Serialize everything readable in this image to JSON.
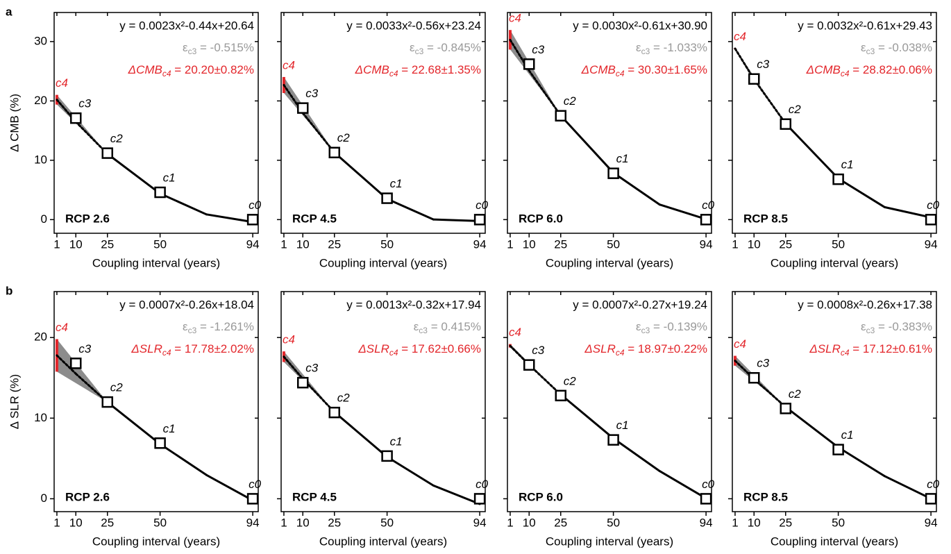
{
  "chart_data": [
    {
      "type": "line",
      "panel_label": "a",
      "title": "RCP 2.6",
      "y_label": "Δ CMB (%)",
      "x_label": "Coupling interval (years)",
      "equation": "y = 0.0023x²-0.44x+20.64",
      "epsilon_symbol": "ε",
      "epsilon_sub": "c3",
      "epsilon_text": " = -0.515%",
      "delta_symbol": "ΔCMB",
      "delta_sub": "c4",
      "delta_text": " = 20.20±0.82%",
      "xlim": [
        -0.3,
        96.6
      ],
      "xticks": [
        1,
        10,
        25,
        50,
        94
      ],
      "ylim": [
        -2.3,
        34.9
      ],
      "yticks": [
        0,
        10,
        20,
        30
      ],
      "fit": {
        "x": [
          1,
          10,
          25,
          50,
          72,
          94
        ],
        "values": [
          20.2,
          16.47,
          11.08,
          4.39,
          0.88,
          -0.4
        ],
        "color": "#000000"
      },
      "band": {
        "x": [
          1,
          25
        ],
        "lower": [
          19.38,
          11.08
        ],
        "upper": [
          21.02,
          11.08
        ],
        "color": "#8c8c8c",
        "edge_color": "#e3262b",
        "label": "c4"
      },
      "points": {
        "x": [
          10,
          25,
          50,
          94
        ],
        "values": [
          17.1,
          11.2,
          4.6,
          0
        ],
        "labels": [
          "c3",
          "c2",
          "c1",
          "c0"
        ]
      }
    },
    {
      "type": "line",
      "title": "RCP 4.5",
      "x_label": "Coupling interval (years)",
      "equation": "y = 0.0033x²-0.56x+23.24",
      "epsilon_symbol": "ε",
      "epsilon_sub": "c3",
      "epsilon_text": " = -0.845%",
      "delta_symbol": "ΔCMB",
      "delta_sub": "c4",
      "delta_text": " = 22.68±1.35%",
      "xlim": [
        -0.3,
        96.6
      ],
      "xticks": [
        1,
        10,
        25,
        50,
        94
      ],
      "ylim": [
        -2.3,
        34.9
      ],
      "yticks": [
        0,
        10,
        20,
        30
      ],
      "fit": {
        "x": [
          1,
          10,
          25,
          50,
          72,
          94
        ],
        "values": [
          22.68,
          17.97,
          11.3,
          3.49,
          0.03,
          -0.24
        ],
        "color": "#000000"
      },
      "band": {
        "x": [
          1,
          25
        ],
        "lower": [
          21.33,
          11.3
        ],
        "upper": [
          24.03,
          11.3
        ],
        "color": "#8c8c8c",
        "edge_color": "#e3262b",
        "label": "c4"
      },
      "points": {
        "x": [
          10,
          25,
          50,
          94
        ],
        "values": [
          18.8,
          11.3,
          3.6,
          0
        ],
        "labels": [
          "c3",
          "c2",
          "c1",
          "c0"
        ]
      }
    },
    {
      "type": "line",
      "title": "RCP 6.0",
      "x_label": "Coupling interval (years)",
      "equation": "y = 0.0030x²-0.61x+30.90",
      "epsilon_symbol": "ε",
      "epsilon_sub": "c3",
      "epsilon_text": " = -1.033%",
      "delta_symbol": "ΔCMB",
      "delta_sub": "c4",
      "delta_text": " = 30.30±1.65%",
      "xlim": [
        -0.3,
        96.6
      ],
      "xticks": [
        1,
        10,
        25,
        50,
        94
      ],
      "ylim": [
        -2.3,
        34.9
      ],
      "yticks": [
        0,
        10,
        20,
        30
      ],
      "fit": {
        "x": [
          1,
          10,
          25,
          50,
          72,
          94
        ],
        "values": [
          30.29,
          25.1,
          17.53,
          7.9,
          2.53,
          0.07
        ],
        "color": "#000000"
      },
      "band": {
        "x": [
          1,
          25
        ],
        "lower": [
          28.65,
          17.53
        ],
        "upper": [
          31.95,
          17.53
        ],
        "color": "#8c8c8c",
        "edge_color": "#e3262b",
        "label": "c4"
      },
      "points": {
        "x": [
          10,
          25,
          50,
          94
        ],
        "values": [
          26.2,
          17.5,
          7.8,
          0
        ],
        "labels": [
          "c3",
          "c2",
          "c1",
          "c0"
        ]
      }
    },
    {
      "type": "line",
      "title": "RCP 8.5",
      "x_label": "Coupling interval (years)",
      "equation": "y = 0.0032x²-0.61x+29.43",
      "epsilon_symbol": "ε",
      "epsilon_sub": "c3",
      "epsilon_text": " = -0.038%",
      "delta_symbol": "ΔCMB",
      "delta_sub": "c4",
      "delta_text": " = 28.82±0.06%",
      "xlim": [
        -0.3,
        96.6
      ],
      "xticks": [
        1,
        10,
        25,
        50,
        94
      ],
      "ylim": [
        -2.3,
        34.9
      ],
      "yticks": [
        0,
        10,
        20,
        30
      ],
      "fit": {
        "x": [
          1,
          10,
          25,
          50,
          72,
          94
        ],
        "values": [
          28.82,
          23.65,
          16.18,
          6.93,
          2.1,
          0.37
        ],
        "color": "#000000"
      },
      "band": {
        "x": [
          1,
          25
        ],
        "lower": [
          28.76,
          16.18
        ],
        "upper": [
          28.88,
          16.18
        ],
        "color": "#8c8c8c",
        "edge_color": "#e3262b",
        "label": "c4"
      },
      "points": {
        "x": [
          10,
          25,
          50,
          94
        ],
        "values": [
          23.7,
          16.1,
          6.8,
          0
        ],
        "labels": [
          "c3",
          "c2",
          "c1",
          "c0"
        ]
      }
    },
    {
      "type": "line",
      "panel_label": "b",
      "title": "RCP 2.6",
      "y_label": "Δ SLR (%)",
      "x_label": "Coupling interval (years)",
      "equation": "y = 0.0007x²-0.26x+18.04",
      "epsilon_symbol": "ε",
      "epsilon_sub": "c3",
      "epsilon_text": " = -1.261%",
      "delta_symbol": "ΔSLR",
      "delta_sub": "c4",
      "delta_text": " = 17.78±2.02%",
      "xlim": [
        -0.3,
        96.6
      ],
      "xticks": [
        1,
        10,
        25,
        50,
        94
      ],
      "ylim": [
        -1.6,
        25.7
      ],
      "yticks": [
        0,
        10,
        20
      ],
      "fit": {
        "x": [
          1,
          10,
          25,
          50,
          72,
          94
        ],
        "values": [
          17.78,
          15.51,
          11.98,
          6.79,
          2.95,
          -0.21
        ],
        "color": "#000000"
      },
      "band": {
        "x": [
          1,
          25
        ],
        "lower": [
          15.76,
          11.98
        ],
        "upper": [
          19.8,
          11.98
        ],
        "color": "#8c8c8c",
        "edge_color": "#e3262b",
        "label": "c4"
      },
      "points": {
        "x": [
          10,
          25,
          50,
          94
        ],
        "values": [
          16.8,
          12.0,
          6.9,
          0
        ],
        "labels": [
          "c3",
          "c2",
          "c1",
          "c0"
        ]
      }
    },
    {
      "type": "line",
      "title": "RCP 4.5",
      "x_label": "Coupling interval (years)",
      "equation": "y = 0.0013x²-0.32x+17.94",
      "epsilon_symbol": "ε",
      "epsilon_sub": "c3",
      "epsilon_text": " = 0.415%",
      "delta_symbol": "ΔSLR",
      "delta_sub": "c4",
      "delta_text": " = 17.62±0.66%",
      "xlim": [
        -0.3,
        96.6
      ],
      "xticks": [
        1,
        10,
        25,
        50,
        94
      ],
      "ylim": [
        -1.6,
        25.7
      ],
      "yticks": [
        0,
        10,
        20
      ],
      "fit": {
        "x": [
          1,
          10,
          25,
          50,
          72,
          94
        ],
        "values": [
          17.62,
          14.87,
          10.75,
          5.19,
          1.64,
          -0.65
        ],
        "color": "#000000"
      },
      "band": {
        "x": [
          1,
          25
        ],
        "lower": [
          16.96,
          10.75
        ],
        "upper": [
          18.28,
          10.75
        ],
        "color": "#8c8c8c",
        "edge_color": "#e3262b",
        "label": "c4"
      },
      "points": {
        "x": [
          10,
          25,
          50,
          94
        ],
        "values": [
          14.4,
          10.7,
          5.3,
          0
        ],
        "labels": [
          "c3",
          "c2",
          "c1",
          "c0"
        ]
      }
    },
    {
      "type": "line",
      "title": "RCP 6.0",
      "x_label": "Coupling interval (years)",
      "equation": "y = 0.0007x²-0.27x+19.24",
      "epsilon_symbol": "ε",
      "epsilon_sub": "c3",
      "epsilon_text": " = -0.139%",
      "delta_symbol": "ΔSLR",
      "delta_sub": "c4",
      "delta_text": " = 18.97±0.22%",
      "xlim": [
        -0.3,
        96.6
      ],
      "xticks": [
        1,
        10,
        25,
        50,
        94
      ],
      "ylim": [
        -1.6,
        25.7
      ],
      "yticks": [
        0,
        10,
        20
      ],
      "fit": {
        "x": [
          1,
          10,
          25,
          50,
          72,
          94
        ],
        "values": [
          18.97,
          16.61,
          12.93,
          7.49,
          3.43,
          0.05
        ],
        "color": "#000000"
      },
      "band": {
        "x": [
          1,
          25
        ],
        "lower": [
          18.75,
          12.93
        ],
        "upper": [
          19.19,
          12.93
        ],
        "color": "#8c8c8c",
        "edge_color": "#e3262b",
        "label": "c4"
      },
      "points": {
        "x": [
          10,
          25,
          50,
          94
        ],
        "values": [
          16.6,
          12.8,
          7.3,
          0
        ],
        "labels": [
          "c3",
          "c2",
          "c1",
          "c0"
        ]
      }
    },
    {
      "type": "line",
      "title": "RCP 8.5",
      "x_label": "Coupling interval (years)",
      "equation": "y = 0.0008x²-0.26x+17.38",
      "epsilon_symbol": "ε",
      "epsilon_sub": "c3",
      "epsilon_text": " = -0.383%",
      "delta_symbol": "ΔSLR",
      "delta_sub": "c4",
      "delta_text": " = 17.12±0.61%",
      "xlim": [
        -0.3,
        96.6
      ],
      "xticks": [
        1,
        10,
        25,
        50,
        94
      ],
      "ylim": [
        -1.6,
        25.7
      ],
      "yticks": [
        0,
        10,
        20
      ],
      "fit": {
        "x": [
          1,
          10,
          25,
          50,
          72,
          94
        ],
        "values": [
          17.12,
          14.86,
          11.38,
          6.38,
          2.81,
          0.01
        ],
        "color": "#000000"
      },
      "band": {
        "x": [
          1,
          25
        ],
        "lower": [
          16.51,
          11.38
        ],
        "upper": [
          17.73,
          11.38
        ],
        "color": "#8c8c8c",
        "edge_color": "#e3262b",
        "label": "c4"
      },
      "points": {
        "x": [
          10,
          25,
          50,
          94
        ],
        "values": [
          15.0,
          11.2,
          6.1,
          0
        ],
        "labels": [
          "c3",
          "c2",
          "c1",
          "c0"
        ]
      }
    }
  ]
}
